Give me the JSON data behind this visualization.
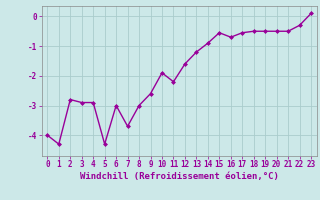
{
  "x": [
    0,
    1,
    2,
    3,
    4,
    5,
    6,
    7,
    8,
    9,
    10,
    11,
    12,
    13,
    14,
    15,
    16,
    17,
    18,
    19,
    20,
    21,
    22,
    23
  ],
  "y": [
    -4.0,
    -4.3,
    -2.8,
    -2.9,
    -2.9,
    -4.3,
    -3.0,
    -3.7,
    -3.0,
    -2.6,
    -1.9,
    -2.2,
    -1.6,
    -1.2,
    -0.9,
    -0.55,
    -0.7,
    -0.55,
    -0.5,
    -0.5,
    -0.5,
    -0.5,
    -0.3,
    0.1
  ],
  "line_color": "#990099",
  "marker": "D",
  "marker_size": 2.0,
  "linewidth": 1.0,
  "bg_color": "#cce8e8",
  "grid_color": "#aacccc",
  "xlabel": "Windchill (Refroidissement éolien,°C)",
  "xlabel_color": "#990099",
  "xlabel_fontsize": 6.5,
  "ylabel_ticks": [
    0,
    -1,
    -2,
    -3,
    -4
  ],
  "xtick_labels": [
    "0",
    "1",
    "2",
    "3",
    "4",
    "5",
    "6",
    "7",
    "8",
    "9",
    "10",
    "11",
    "12",
    "13",
    "14",
    "15",
    "16",
    "17",
    "18",
    "19",
    "20",
    "21",
    "22",
    "23"
  ],
  "ytick_color": "#990099",
  "xtick_color": "#990099",
  "tick_fontsize": 5.5,
  "xlim": [
    -0.5,
    23.5
  ],
  "ylim": [
    -4.7,
    0.35
  ]
}
